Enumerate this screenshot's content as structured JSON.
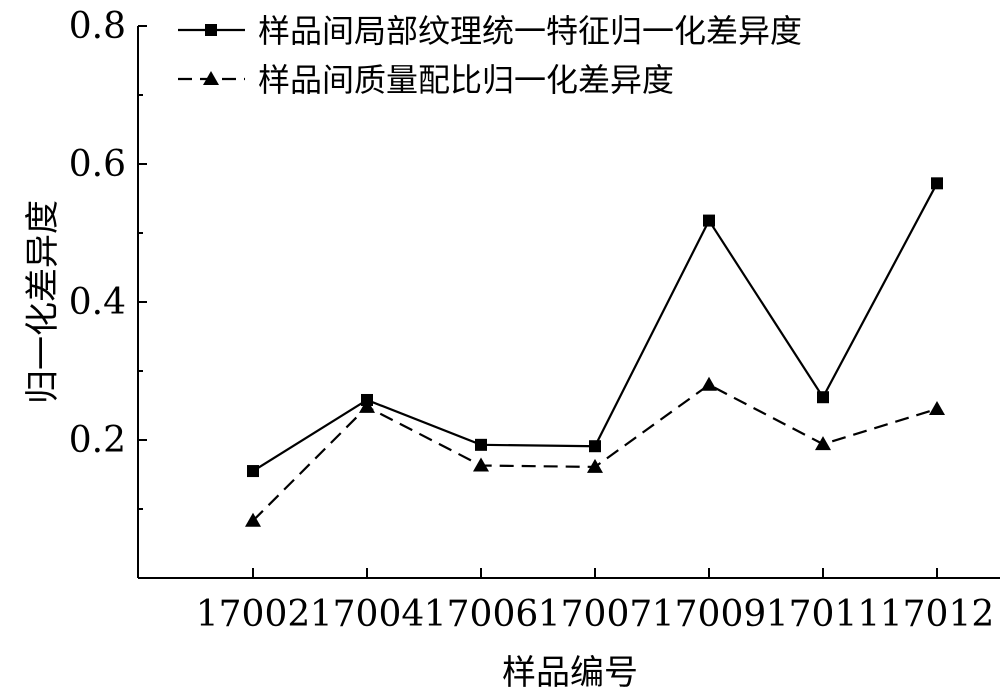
{
  "chart_data": {
    "type": "line",
    "categories": [
      "17002",
      "17004",
      "17006",
      "17007",
      "17009",
      "17011",
      "17012"
    ],
    "series": [
      {
        "name": "样品间局部纹理统一特征归一化差异度",
        "values": [
          0.155,
          0.258,
          0.193,
          0.191,
          0.518,
          0.262,
          0.572
        ],
        "marker": "square",
        "dash": "solid"
      },
      {
        "name": "样品间质量配比归一化差异度",
        "values": [
          0.083,
          0.248,
          0.163,
          0.161,
          0.28,
          0.194,
          0.245
        ],
        "marker": "triangle",
        "dash": "dashed"
      }
    ],
    "xlabel": "样品编号",
    "ylabel": "归一化差异度",
    "ylim": [
      0.0,
      0.8
    ],
    "yticks": [
      {
        "value": 0.2,
        "label": "0.2"
      },
      {
        "value": 0.4,
        "label": "0.4"
      },
      {
        "value": 0.6,
        "label": "0.6"
      },
      {
        "value": 0.8,
        "label": "0.8"
      }
    ],
    "yminor": [
      0.1,
      0.3,
      0.5,
      0.7
    ],
    "grid": false,
    "legend": "top-right",
    "colors": {
      "line": "#000000"
    }
  }
}
